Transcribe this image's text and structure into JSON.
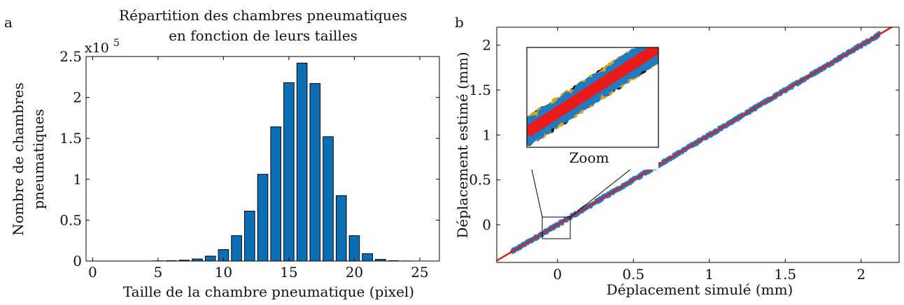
{
  "panels": {
    "a": {
      "letter": "a",
      "exponent_base": "x10",
      "exponent_power": "5"
    },
    "b": {
      "letter": "b",
      "zoom_label": "Zoom"
    }
  },
  "colors": {
    "bar": "#0a6fb4",
    "scatter": "#1f7bc2",
    "line": "#e81b1b",
    "axis": "#000000"
  },
  "chart_data": [
    {
      "type": "bar",
      "title": "Répartition des chambres pneumatiques en fonction de leurs tailles",
      "title_lines": [
        "Répartition des chambres pneumatiques",
        "en fonction de leurs tailles"
      ],
      "xlabel": "Taille de la chambre pneumatique (pixel)",
      "ylabel_lines": [
        "Nombre de chambres",
        "pneumatiques"
      ],
      "y_multiplier": "x10^5",
      "xlim": [
        -0.5,
        26.5
      ],
      "ylim": [
        0,
        2.5
      ],
      "xticks": [
        0,
        5,
        10,
        15,
        20,
        25
      ],
      "yticks": [
        0,
        0.5,
        1,
        1.5,
        2,
        2.5
      ],
      "ytick_labels": [
        "0",
        "0.5",
        "1",
        "1.5",
        "2",
        "2.5"
      ],
      "categories": [
        1,
        2,
        3,
        4,
        5,
        6,
        7,
        8,
        9,
        10,
        11,
        12,
        13,
        14,
        15,
        16,
        17,
        18,
        19,
        20,
        21,
        22,
        23,
        24,
        25
      ],
      "values": [
        0,
        0,
        0,
        0,
        0.002,
        0.004,
        0.01,
        0.025,
        0.06,
        0.14,
        0.31,
        0.61,
        1.06,
        1.64,
        2.18,
        2.42,
        2.17,
        1.52,
        0.8,
        0.31,
        0.09,
        0.02,
        0.004,
        0.001,
        0
      ],
      "grid": false
    },
    {
      "type": "scatter",
      "xlabel": "Déplacement simulé (mm)",
      "ylabel": "Déplacement estimé (mm)",
      "xlim": [
        -0.4,
        2.25
      ],
      "ylim": [
        -0.42,
        2.2
      ],
      "xticks": [
        0,
        0.5,
        1,
        1.5,
        2
      ],
      "yticks": [
        0,
        0.5,
        1,
        1.5,
        2
      ],
      "tick_labels": [
        "0",
        "0.5",
        "1",
        "1.5",
        "2"
      ],
      "series": [
        {
          "kind": "points",
          "x_range": [
            -0.3,
            2.12
          ],
          "relation": "y = x",
          "spread": 0.02
        },
        {
          "kind": "line",
          "x_range": [
            -0.4,
            2.25
          ],
          "relation": "y = x"
        }
      ],
      "inset": {
        "label": "Zoom",
        "x_range": [
          -0.1,
          0.07
        ],
        "y_range": [
          -0.13,
          0.07
        ]
      },
      "grid": false
    }
  ]
}
